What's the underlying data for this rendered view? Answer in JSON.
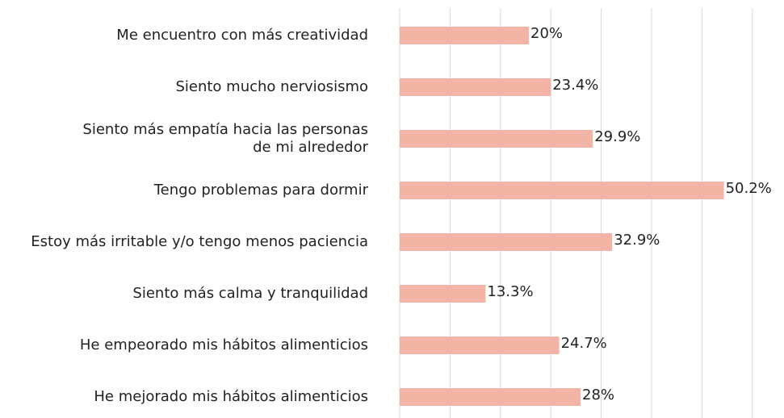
{
  "chart_data": {
    "type": "barh",
    "categories": [
      "Me encuentro con más creatividad",
      "Siento mucho nerviosismo",
      "Siento más empatía hacia las personas\nde mi alrededor",
      "Tengo problemas para dormir",
      "Estoy más irritable y/o tengo menos paciencia",
      "Siento más calma y tranquilidad",
      "He empeorado mis hábitos alimenticios",
      "He mejorado mis hábitos alimenticios"
    ],
    "values": [
      20,
      23.4,
      29.9,
      50.2,
      32.9,
      13.3,
      24.7,
      28
    ],
    "value_labels": [
      "20%",
      "23.4%",
      "29.9%",
      "50.2%",
      "32.9%",
      "13.3%",
      "24.7%",
      "28%"
    ],
    "color": "#f2b4a4",
    "xlim": [
      0,
      55
    ],
    "grid": true
  }
}
